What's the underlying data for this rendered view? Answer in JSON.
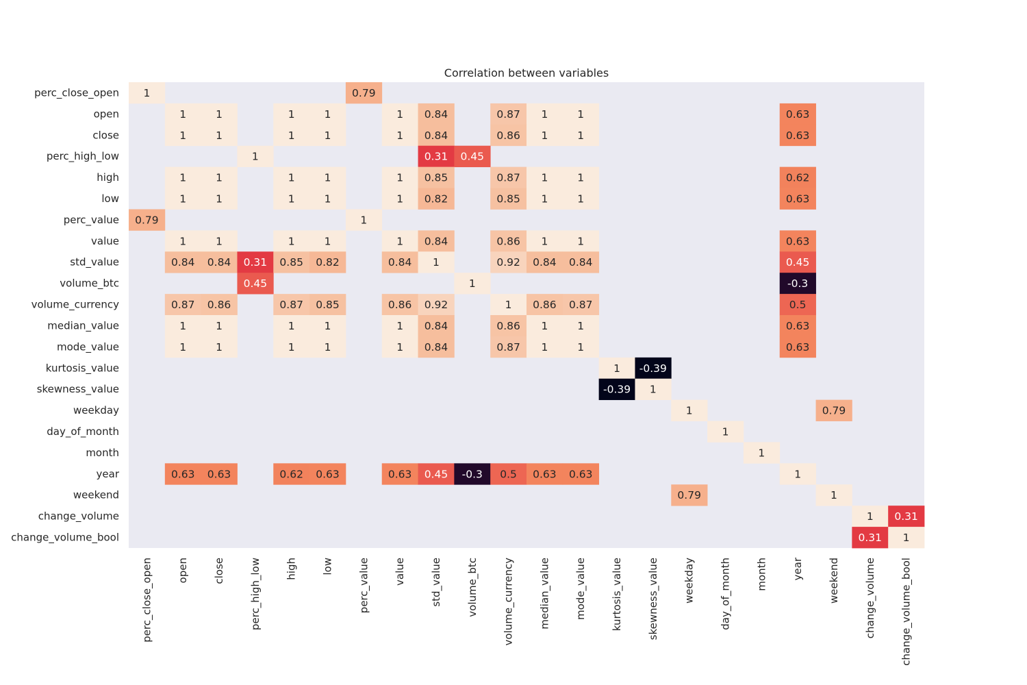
{
  "chart_data": {
    "type": "heatmap",
    "title": "Correlation between variables",
    "xlabel": "",
    "ylabel": "",
    "colorscale": "rocket",
    "value_range": [
      -0.39,
      1
    ],
    "colors": {
      "background": "#eaeaf2",
      "label_dark": "#262626",
      "label_light": "#ffffff"
    },
    "variables": [
      "perc_close_open",
      "open",
      "close",
      "perc_high_low",
      "high",
      "low",
      "perc_value",
      "value",
      "std_value",
      "volume_btc",
      "volume_currency",
      "median_value",
      "mode_value",
      "kurtosis_value",
      "skewness_value",
      "weekday",
      "day_of_month",
      "month",
      "year",
      "weekend",
      "change_volume",
      "change_volume_bool"
    ],
    "cells": [
      {
        "row": "perc_close_open",
        "col": "perc_close_open",
        "value": 1,
        "label": "1"
      },
      {
        "row": "perc_close_open",
        "col": "perc_value",
        "value": 0.79,
        "label": "0.79"
      },
      {
        "row": "open",
        "col": "open",
        "value": 1,
        "label": "1"
      },
      {
        "row": "open",
        "col": "close",
        "value": 1,
        "label": "1"
      },
      {
        "row": "open",
        "col": "high",
        "value": 1,
        "label": "1"
      },
      {
        "row": "open",
        "col": "low",
        "value": 1,
        "label": "1"
      },
      {
        "row": "open",
        "col": "value",
        "value": 1,
        "label": "1"
      },
      {
        "row": "open",
        "col": "std_value",
        "value": 0.84,
        "label": "0.84"
      },
      {
        "row": "open",
        "col": "volume_currency",
        "value": 0.87,
        "label": "0.87"
      },
      {
        "row": "open",
        "col": "median_value",
        "value": 1,
        "label": "1"
      },
      {
        "row": "open",
        "col": "mode_value",
        "value": 1,
        "label": "1"
      },
      {
        "row": "open",
        "col": "year",
        "value": 0.63,
        "label": "0.63"
      },
      {
        "row": "close",
        "col": "open",
        "value": 1,
        "label": "1"
      },
      {
        "row": "close",
        "col": "close",
        "value": 1,
        "label": "1"
      },
      {
        "row": "close",
        "col": "high",
        "value": 1,
        "label": "1"
      },
      {
        "row": "close",
        "col": "low",
        "value": 1,
        "label": "1"
      },
      {
        "row": "close",
        "col": "value",
        "value": 1,
        "label": "1"
      },
      {
        "row": "close",
        "col": "std_value",
        "value": 0.84,
        "label": "0.84"
      },
      {
        "row": "close",
        "col": "volume_currency",
        "value": 0.86,
        "label": "0.86"
      },
      {
        "row": "close",
        "col": "median_value",
        "value": 1,
        "label": "1"
      },
      {
        "row": "close",
        "col": "mode_value",
        "value": 1,
        "label": "1"
      },
      {
        "row": "close",
        "col": "year",
        "value": 0.63,
        "label": "0.63"
      },
      {
        "row": "perc_high_low",
        "col": "perc_high_low",
        "value": 1,
        "label": "1"
      },
      {
        "row": "perc_high_low",
        "col": "std_value",
        "value": 0.31,
        "label": "0.31"
      },
      {
        "row": "perc_high_low",
        "col": "volume_btc",
        "value": 0.45,
        "label": "0.45"
      },
      {
        "row": "high",
        "col": "open",
        "value": 1,
        "label": "1"
      },
      {
        "row": "high",
        "col": "close",
        "value": 1,
        "label": "1"
      },
      {
        "row": "high",
        "col": "high",
        "value": 1,
        "label": "1"
      },
      {
        "row": "high",
        "col": "low",
        "value": 1,
        "label": "1"
      },
      {
        "row": "high",
        "col": "value",
        "value": 1,
        "label": "1"
      },
      {
        "row": "high",
        "col": "std_value",
        "value": 0.85,
        "label": "0.85"
      },
      {
        "row": "high",
        "col": "volume_currency",
        "value": 0.87,
        "label": "0.87"
      },
      {
        "row": "high",
        "col": "median_value",
        "value": 1,
        "label": "1"
      },
      {
        "row": "high",
        "col": "mode_value",
        "value": 1,
        "label": "1"
      },
      {
        "row": "high",
        "col": "year",
        "value": 0.62,
        "label": "0.62"
      },
      {
        "row": "low",
        "col": "open",
        "value": 1,
        "label": "1"
      },
      {
        "row": "low",
        "col": "close",
        "value": 1,
        "label": "1"
      },
      {
        "row": "low",
        "col": "high",
        "value": 1,
        "label": "1"
      },
      {
        "row": "low",
        "col": "low",
        "value": 1,
        "label": "1"
      },
      {
        "row": "low",
        "col": "value",
        "value": 1,
        "label": "1"
      },
      {
        "row": "low",
        "col": "std_value",
        "value": 0.82,
        "label": "0.82"
      },
      {
        "row": "low",
        "col": "volume_currency",
        "value": 0.85,
        "label": "0.85"
      },
      {
        "row": "low",
        "col": "median_value",
        "value": 1,
        "label": "1"
      },
      {
        "row": "low",
        "col": "mode_value",
        "value": 1,
        "label": "1"
      },
      {
        "row": "low",
        "col": "year",
        "value": 0.63,
        "label": "0.63"
      },
      {
        "row": "perc_value",
        "col": "perc_close_open",
        "value": 0.79,
        "label": "0.79"
      },
      {
        "row": "perc_value",
        "col": "perc_value",
        "value": 1,
        "label": "1"
      },
      {
        "row": "value",
        "col": "open",
        "value": 1,
        "label": "1"
      },
      {
        "row": "value",
        "col": "close",
        "value": 1,
        "label": "1"
      },
      {
        "row": "value",
        "col": "high",
        "value": 1,
        "label": "1"
      },
      {
        "row": "value",
        "col": "low",
        "value": 1,
        "label": "1"
      },
      {
        "row": "value",
        "col": "value",
        "value": 1,
        "label": "1"
      },
      {
        "row": "value",
        "col": "std_value",
        "value": 0.84,
        "label": "0.84"
      },
      {
        "row": "value",
        "col": "volume_currency",
        "value": 0.86,
        "label": "0.86"
      },
      {
        "row": "value",
        "col": "median_value",
        "value": 1,
        "label": "1"
      },
      {
        "row": "value",
        "col": "mode_value",
        "value": 1,
        "label": "1"
      },
      {
        "row": "value",
        "col": "year",
        "value": 0.63,
        "label": "0.63"
      },
      {
        "row": "std_value",
        "col": "open",
        "value": 0.84,
        "label": "0.84"
      },
      {
        "row": "std_value",
        "col": "close",
        "value": 0.84,
        "label": "0.84"
      },
      {
        "row": "std_value",
        "col": "perc_high_low",
        "value": 0.31,
        "label": "0.31"
      },
      {
        "row": "std_value",
        "col": "high",
        "value": 0.85,
        "label": "0.85"
      },
      {
        "row": "std_value",
        "col": "low",
        "value": 0.82,
        "label": "0.82"
      },
      {
        "row": "std_value",
        "col": "value",
        "value": 0.84,
        "label": "0.84"
      },
      {
        "row": "std_value",
        "col": "std_value",
        "value": 1,
        "label": "1"
      },
      {
        "row": "std_value",
        "col": "volume_currency",
        "value": 0.92,
        "label": "0.92"
      },
      {
        "row": "std_value",
        "col": "median_value",
        "value": 0.84,
        "label": "0.84"
      },
      {
        "row": "std_value",
        "col": "mode_value",
        "value": 0.84,
        "label": "0.84"
      },
      {
        "row": "std_value",
        "col": "year",
        "value": 0.45,
        "label": "0.45"
      },
      {
        "row": "volume_btc",
        "col": "perc_high_low",
        "value": 0.45,
        "label": "0.45"
      },
      {
        "row": "volume_btc",
        "col": "volume_btc",
        "value": 1,
        "label": "1"
      },
      {
        "row": "volume_btc",
        "col": "year",
        "value": -0.3,
        "label": "-0.3"
      },
      {
        "row": "volume_currency",
        "col": "open",
        "value": 0.87,
        "label": "0.87"
      },
      {
        "row": "volume_currency",
        "col": "close",
        "value": 0.86,
        "label": "0.86"
      },
      {
        "row": "volume_currency",
        "col": "high",
        "value": 0.87,
        "label": "0.87"
      },
      {
        "row": "volume_currency",
        "col": "low",
        "value": 0.85,
        "label": "0.85"
      },
      {
        "row": "volume_currency",
        "col": "value",
        "value": 0.86,
        "label": "0.86"
      },
      {
        "row": "volume_currency",
        "col": "std_value",
        "value": 0.92,
        "label": "0.92"
      },
      {
        "row": "volume_currency",
        "col": "volume_currency",
        "value": 1,
        "label": "1"
      },
      {
        "row": "volume_currency",
        "col": "median_value",
        "value": 0.86,
        "label": "0.86"
      },
      {
        "row": "volume_currency",
        "col": "mode_value",
        "value": 0.87,
        "label": "0.87"
      },
      {
        "row": "volume_currency",
        "col": "year",
        "value": 0.5,
        "label": "0.5"
      },
      {
        "row": "median_value",
        "col": "open",
        "value": 1,
        "label": "1"
      },
      {
        "row": "median_value",
        "col": "close",
        "value": 1,
        "label": "1"
      },
      {
        "row": "median_value",
        "col": "high",
        "value": 1,
        "label": "1"
      },
      {
        "row": "median_value",
        "col": "low",
        "value": 1,
        "label": "1"
      },
      {
        "row": "median_value",
        "col": "value",
        "value": 1,
        "label": "1"
      },
      {
        "row": "median_value",
        "col": "std_value",
        "value": 0.84,
        "label": "0.84"
      },
      {
        "row": "median_value",
        "col": "volume_currency",
        "value": 0.86,
        "label": "0.86"
      },
      {
        "row": "median_value",
        "col": "median_value",
        "value": 1,
        "label": "1"
      },
      {
        "row": "median_value",
        "col": "mode_value",
        "value": 1,
        "label": "1"
      },
      {
        "row": "median_value",
        "col": "year",
        "value": 0.63,
        "label": "0.63"
      },
      {
        "row": "mode_value",
        "col": "open",
        "value": 1,
        "label": "1"
      },
      {
        "row": "mode_value",
        "col": "close",
        "value": 1,
        "label": "1"
      },
      {
        "row": "mode_value",
        "col": "high",
        "value": 1,
        "label": "1"
      },
      {
        "row": "mode_value",
        "col": "low",
        "value": 1,
        "label": "1"
      },
      {
        "row": "mode_value",
        "col": "value",
        "value": 1,
        "label": "1"
      },
      {
        "row": "mode_value",
        "col": "std_value",
        "value": 0.84,
        "label": "0.84"
      },
      {
        "row": "mode_value",
        "col": "volume_currency",
        "value": 0.87,
        "label": "0.87"
      },
      {
        "row": "mode_value",
        "col": "median_value",
        "value": 1,
        "label": "1"
      },
      {
        "row": "mode_value",
        "col": "mode_value",
        "value": 1,
        "label": "1"
      },
      {
        "row": "mode_value",
        "col": "year",
        "value": 0.63,
        "label": "0.63"
      },
      {
        "row": "kurtosis_value",
        "col": "kurtosis_value",
        "value": 1,
        "label": "1"
      },
      {
        "row": "kurtosis_value",
        "col": "skewness_value",
        "value": -0.39,
        "label": "-0.39"
      },
      {
        "row": "skewness_value",
        "col": "kurtosis_value",
        "value": -0.39,
        "label": "-0.39"
      },
      {
        "row": "skewness_value",
        "col": "skewness_value",
        "value": 1,
        "label": "1"
      },
      {
        "row": "weekday",
        "col": "weekday",
        "value": 1,
        "label": "1"
      },
      {
        "row": "weekday",
        "col": "weekend",
        "value": 0.79,
        "label": "0.79"
      },
      {
        "row": "day_of_month",
        "col": "day_of_month",
        "value": 1,
        "label": "1"
      },
      {
        "row": "month",
        "col": "month",
        "value": 1,
        "label": "1"
      },
      {
        "row": "year",
        "col": "open",
        "value": 0.63,
        "label": "0.63"
      },
      {
        "row": "year",
        "col": "close",
        "value": 0.63,
        "label": "0.63"
      },
      {
        "row": "year",
        "col": "high",
        "value": 0.62,
        "label": "0.62"
      },
      {
        "row": "year",
        "col": "low",
        "value": 0.63,
        "label": "0.63"
      },
      {
        "row": "year",
        "col": "value",
        "value": 0.63,
        "label": "0.63"
      },
      {
        "row": "year",
        "col": "std_value",
        "value": 0.45,
        "label": "0.45"
      },
      {
        "row": "year",
        "col": "volume_btc",
        "value": -0.3,
        "label": "-0.3"
      },
      {
        "row": "year",
        "col": "volume_currency",
        "value": 0.5,
        "label": "0.5"
      },
      {
        "row": "year",
        "col": "median_value",
        "value": 0.63,
        "label": "0.63"
      },
      {
        "row": "year",
        "col": "mode_value",
        "value": 0.63,
        "label": "0.63"
      },
      {
        "row": "year",
        "col": "year",
        "value": 1,
        "label": "1"
      },
      {
        "row": "weekend",
        "col": "weekday",
        "value": 0.79,
        "label": "0.79"
      },
      {
        "row": "weekend",
        "col": "weekend",
        "value": 1,
        "label": "1"
      },
      {
        "row": "change_volume",
        "col": "change_volume",
        "value": 1,
        "label": "1"
      },
      {
        "row": "change_volume",
        "col": "change_volume_bool",
        "value": 0.31,
        "label": "0.31"
      },
      {
        "row": "change_volume_bool",
        "col": "change_volume",
        "value": 0.31,
        "label": "0.31"
      },
      {
        "row": "change_volume_bool",
        "col": "change_volume_bool",
        "value": 1,
        "label": "1"
      }
    ]
  }
}
